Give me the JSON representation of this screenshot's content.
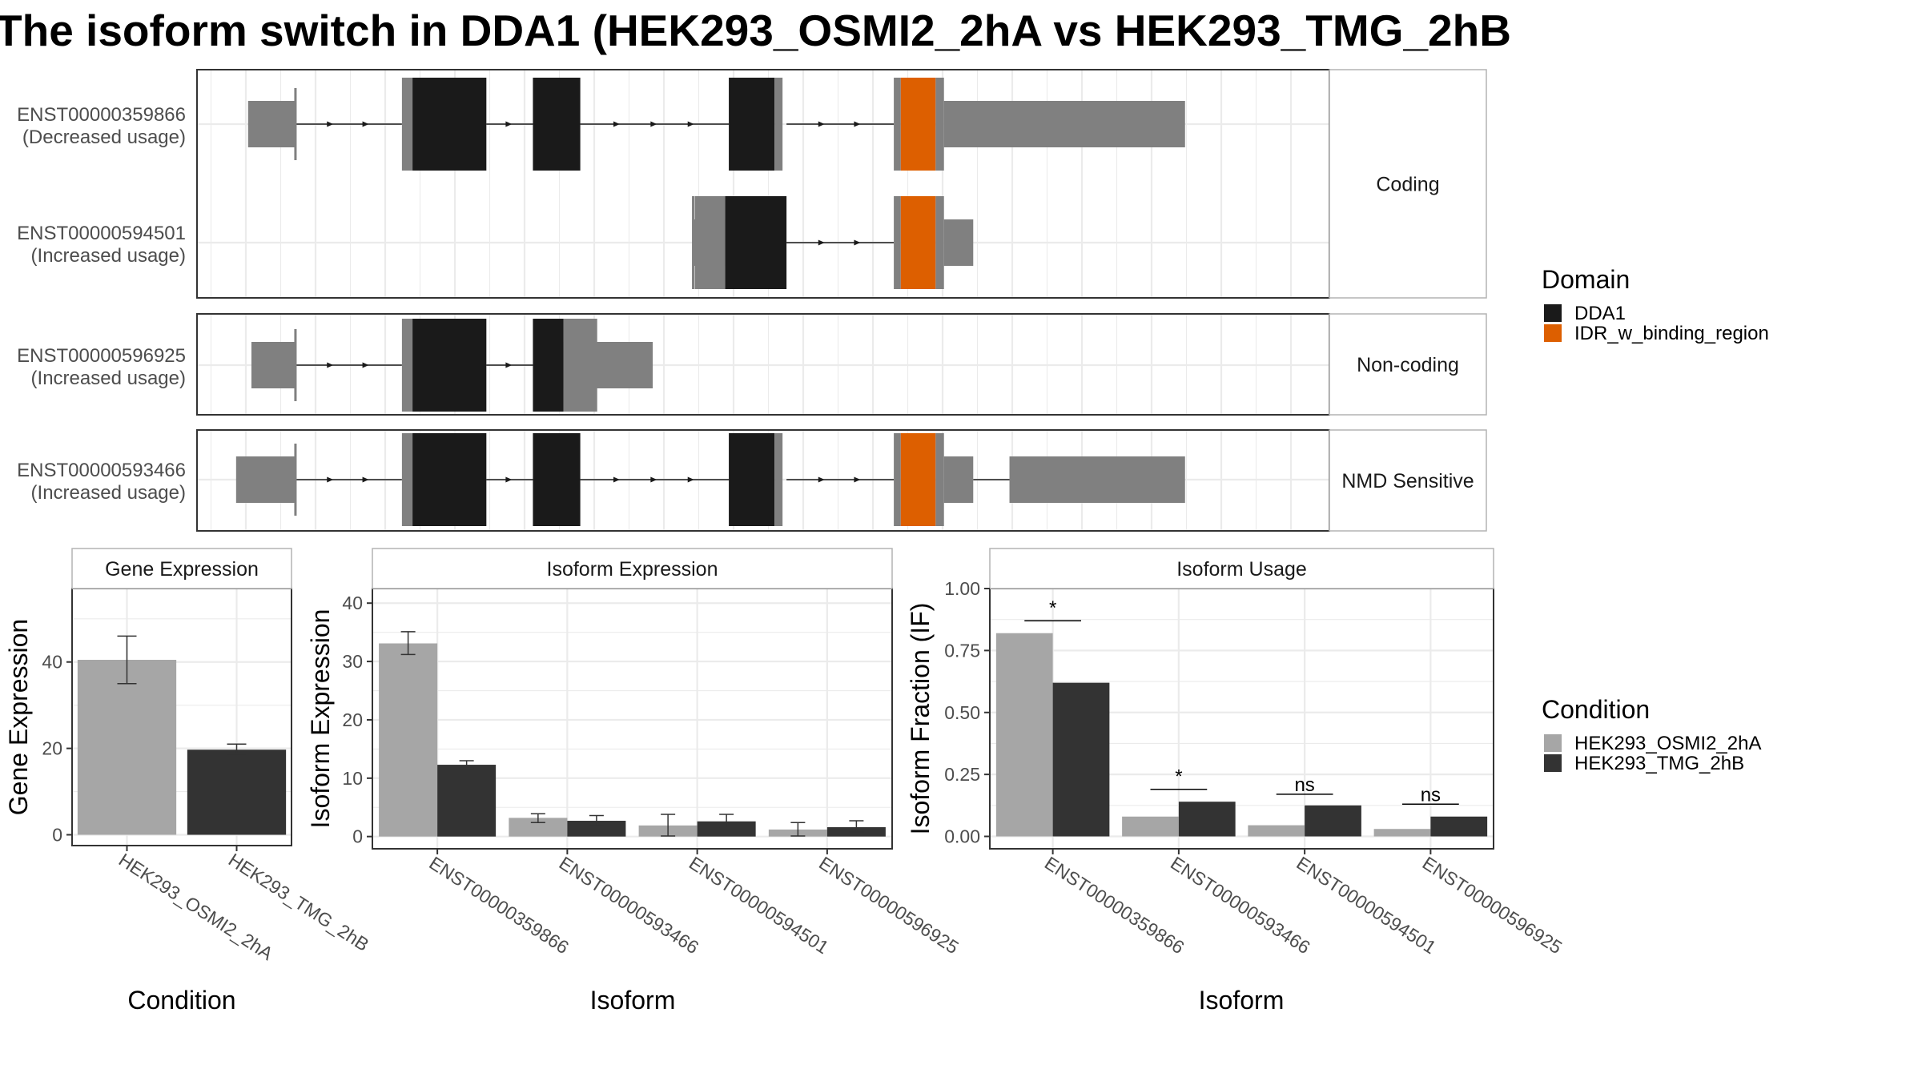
{
  "title": "The isoform switch in DDA1 (HEK293_OSMI2_2hA vs HEK293_TMG_2hB",
  "colors": {
    "utr": "#808080",
    "DDA1": "#1a1a1a",
    "IDR_w_binding_region": "#dd5f00",
    "HEK293_OSMI2_2hA": "#a6a6a6",
    "HEK293_TMG_2hB": "#333333",
    "grid": "#ebebeb",
    "panel_border": "#333333",
    "strip_border": "#b3b3b3"
  },
  "structure": {
    "groups": [
      {
        "label": "Coding",
        "transcripts": [
          {
            "id": "ENST00000359866",
            "usage": "(Decreased usage)",
            "exons": [
              {
                "start": 0.08,
                "end": 1.78,
                "type": "utr"
              },
              {
                "start": 5.6,
                "end": 8.63,
                "type": "DDA1",
                "utr_end": 5.98
              },
              {
                "start": 10.3,
                "end": 12.0,
                "type": "DDA1"
              },
              {
                "start": 17.33,
                "end": 19.4,
                "type": "DDA1",
                "utr_start": 18.97
              },
              {
                "start": 23.25,
                "end": 33.7,
                "type": "IDR_w_binding_region",
                "domain_start": 23.5,
                "domain_end": 24.75,
                "utr_start": 25.05
              }
            ]
          },
          {
            "id": "ENST00000594501",
            "usage": "(Increased usage)",
            "exons": [
              {
                "start": 16.05,
                "end": 19.4,
                "type": "DDA1",
                "utr_end": 17.2
              },
              {
                "start": 23.25,
                "end": 26.1,
                "type": "IDR_w_binding_region",
                "domain_start": 23.5,
                "domain_end": 24.75,
                "utr_start": 25.05
              }
            ]
          }
        ]
      },
      {
        "label": "Non-coding",
        "transcripts": [
          {
            "id": "ENST00000596925",
            "usage": "(Increased usage)",
            "exons": [
              {
                "start": 0.2,
                "end": 1.78,
                "type": "utr"
              },
              {
                "start": 5.6,
                "end": 8.63,
                "type": "DDA1",
                "utr_end": 5.98
              },
              {
                "start": 10.3,
                "end": 14.6,
                "type": "DDA1",
                "utr_start": 11.4
              }
            ]
          }
        ]
      },
      {
        "label": "NMD Sensitive",
        "transcripts": [
          {
            "id": "ENST00000593466",
            "usage": "(Increased usage)",
            "exons": [
              {
                "start": -0.35,
                "end": 1.78,
                "type": "utr"
              },
              {
                "start": 5.6,
                "end": 8.63,
                "type": "DDA1",
                "utr_end": 5.98
              },
              {
                "start": 10.3,
                "end": 12.0,
                "type": "DDA1"
              },
              {
                "start": 17.33,
                "end": 19.4,
                "type": "DDA1",
                "utr_start": 18.97
              },
              {
                "start": 23.25,
                "end": 26.1,
                "type": "IDR_w_binding_region",
                "domain_start": 23.5,
                "domain_end": 24.75,
                "utr_start": 25.05
              },
              {
                "start": 27.4,
                "end": 33.7,
                "type": "utr"
              }
            ]
          }
        ]
      }
    ]
  },
  "legends": {
    "domain": {
      "title": "Domain",
      "items": [
        "DDA1",
        "IDR_w_binding_region"
      ]
    },
    "condition": {
      "title": "Condition",
      "items": [
        "HEK293_OSMI2_2hA",
        "HEK293_TMG_2hB"
      ]
    }
  },
  "chart_data": [
    {
      "type": "bar",
      "title": "Gene Expression",
      "xlabel": "Condition",
      "ylabel": "Gene Expression",
      "categories": [
        "HEK293_OSMI2_2hA",
        "HEK293_TMG_2hB"
      ],
      "values": [
        40.5,
        19.7
      ],
      "errors": [
        [
          35.0,
          46.0
        ],
        [
          18.7,
          21.0
        ]
      ],
      "ylim": [
        -2.5,
        57
      ],
      "yticks": [
        0,
        20,
        40
      ]
    },
    {
      "type": "bar",
      "title": "Isoform Expression",
      "xlabel": "Isoform",
      "ylabel": "Isoform Expression",
      "categories": [
        "ENST00000359866",
        "ENST00000593466",
        "ENST00000594501",
        "ENST00000596925"
      ],
      "series": [
        {
          "name": "HEK293_OSMI2_2hA",
          "values": [
            33.1,
            3.2,
            1.9,
            1.2
          ],
          "errors": [
            [
              31.2,
              35.1
            ],
            [
              2.4,
              3.9
            ],
            [
              0.1,
              3.8
            ],
            [
              0.1,
              2.4
            ]
          ]
        },
        {
          "name": "HEK293_TMG_2hB",
          "values": [
            12.3,
            2.7,
            2.6,
            1.6
          ],
          "errors": [
            [
              11.7,
              13.0
            ],
            [
              1.9,
              3.6
            ],
            [
              1.5,
              3.8
            ],
            [
              0.8,
              2.7
            ]
          ]
        }
      ],
      "ylim": [
        -2.1,
        42.5
      ],
      "yticks": [
        0,
        10,
        20,
        30,
        40
      ]
    },
    {
      "type": "bar",
      "title": "Isoform Usage",
      "xlabel": "Isoform",
      "ylabel": "Isoform Fraction (IF)",
      "categories": [
        "ENST00000359866",
        "ENST00000593466",
        "ENST00000594501",
        "ENST00000596925"
      ],
      "series": [
        {
          "name": "HEK293_OSMI2_2hA",
          "values": [
            0.82,
            0.08,
            0.045,
            0.03
          ]
        },
        {
          "name": "HEK293_TMG_2hB",
          "values": [
            0.62,
            0.14,
            0.125,
            0.08
          ]
        }
      ],
      "significance": [
        "*",
        "*",
        "ns",
        "ns"
      ],
      "sig_y": [
        0.87,
        0.19,
        0.17,
        0.13
      ],
      "ylim": [
        -0.05,
        1.0
      ],
      "yticks": [
        "0.00",
        "0.25",
        "0.50",
        "0.75",
        "1.00"
      ]
    }
  ]
}
